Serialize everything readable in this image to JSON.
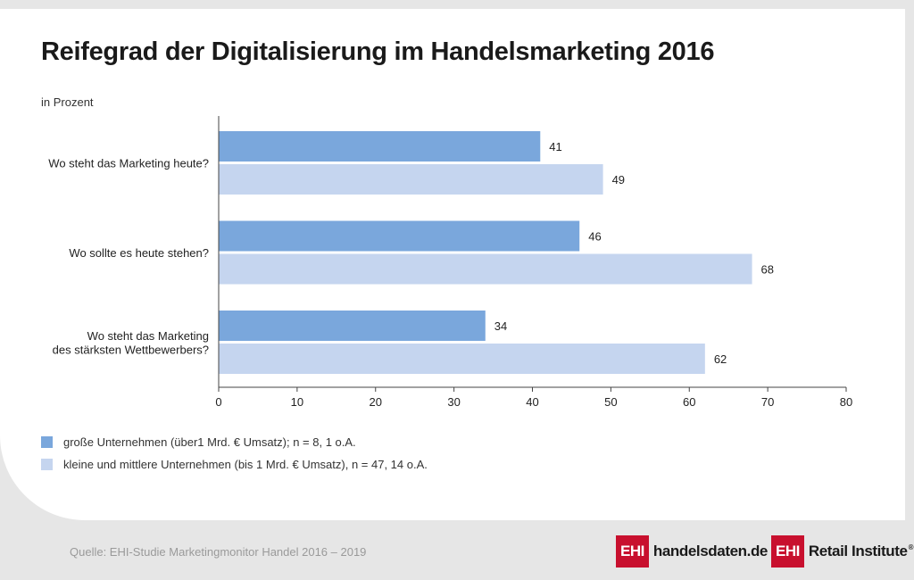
{
  "chart_data": {
    "type": "bar",
    "orientation": "horizontal",
    "title": "Reifegrad der Digitalisierung im Handelsmarketing 2016",
    "unit_label": "in Prozent",
    "categories": [
      [
        "Wo steht das Marketing heute?"
      ],
      [
        "Wo sollte es heute stehen?"
      ],
      [
        "Wo steht das Marketing",
        "des stärksten Wettbewerbers?"
      ]
    ],
    "series": [
      {
        "name": "große Unternehmen (über1 Mrd. € Umsatz); n = 8,  1 o.A.",
        "color": "#7aa7dc",
        "values": [
          41,
          46,
          34
        ]
      },
      {
        "name": "kleine und mittlere Unternehmen (bis 1 Mrd. € Umsatz), n = 47, 14 o.A.",
        "color": "#c5d5ef",
        "values": [
          49,
          68,
          62
        ]
      }
    ],
    "xlim": [
      0,
      80
    ],
    "xticks": [
      "0",
      "10",
      "20",
      "30",
      "40",
      "50",
      "60",
      "70",
      "80"
    ],
    "grid": false,
    "legend_position": "bottom-left"
  },
  "footer": {
    "source": "Quelle: EHI-Studie Marketingmonitor Handel 2016 – 2019",
    "logo1_box": "EHI",
    "logo1_text": "handelsdaten.de",
    "logo2_box": "EHI",
    "logo2_text": "Retail Institute",
    "logo2_mark": "®"
  }
}
